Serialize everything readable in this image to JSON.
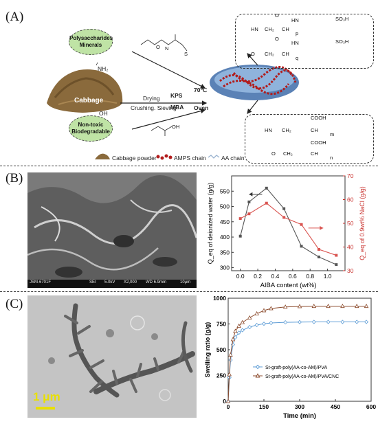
{
  "panels": {
    "a": "(A)",
    "b": "(B)",
    "c": "(C)"
  },
  "panel_a": {
    "bubble_top": "Polysaccharides Minerals",
    "bubble_bottom": "Non-toxic Biodegradable",
    "cabbage": "Cabbage",
    "nh2": "NH₂",
    "oh": "OH",
    "drying": "Drying",
    "crushing": "Crushing. Sieving",
    "kps": "KPS",
    "mba": "MBA",
    "temp": "70℃",
    "oven": "Oven",
    "legend_powder": "Cabbage powder",
    "legend_amps": "AMPS chain",
    "legend_aa": "AA chain",
    "chem_top": {
      "o1": "O",
      "hn1": "HN",
      "so3h1": "SO₃H",
      "hn": "HN",
      "ch2a": "CH₂",
      "cha": "CH",
      "p": "p",
      "o2": "O",
      "hn2": "HN",
      "so3h2": "SO₃H",
      "o": "O",
      "ch2b": "CH₂",
      "chb": "CH",
      "q": "q"
    },
    "chem_bottom": {
      "cooh1": "COOH",
      "hn": "HN",
      "ch2a": "CH₂",
      "cha": "CH",
      "m": "m",
      "cooh2": "COOH",
      "o": "O",
      "ch2b": "CH₂",
      "chb": "CH",
      "n": "n"
    },
    "monomer_o": "O",
    "monomer_oh": "OH",
    "monomer_n": "N",
    "monomer_s": "S"
  },
  "sem_bar": {
    "a": "JSM-6701F",
    "b": "SEI",
    "c": "5.0kV",
    "d": "X2,000",
    "e": "WD 6.9mm",
    "f": "10μm"
  },
  "tem_scale": "1 μm",
  "chart_data": [
    {
      "type": "line",
      "xlabel": "AIBA content (wt%)",
      "ylabel_left": "Q_eq of deionized water (g/g)",
      "ylabel_right": "Q_eq of 0.9wt% NaCl (g/g)",
      "xlim": [
        -0.1,
        1.2
      ],
      "xticks": [
        "0.0",
        "0.2",
        "0.4",
        "0.6",
        "0.8",
        "1.0"
      ],
      "ylim_left": [
        290,
        600
      ],
      "yticks_left": [
        "300",
        "350",
        "400",
        "450",
        "500",
        "550"
      ],
      "ylim_right": [
        30,
        70
      ],
      "yticks_right": [
        "30",
        "40",
        "50",
        "60",
        "70"
      ],
      "series": [
        {
          "axis": "left",
          "color": "#555555",
          "x": [
            0.0,
            0.1,
            0.3,
            0.5,
            0.7,
            0.9,
            1.1
          ],
          "values": [
            403,
            515,
            560,
            493,
            370,
            335,
            310
          ]
        },
        {
          "axis": "right",
          "color": "#d9534f",
          "x": [
            0.0,
            0.1,
            0.3,
            0.5,
            0.7,
            0.9,
            1.1
          ],
          "values": [
            52,
            54,
            58.5,
            52.5,
            49.5,
            39,
            36.5
          ]
        }
      ]
    },
    {
      "type": "line",
      "xlabel": "Time (min)",
      "ylabel": "Swelling ratio (g/g)",
      "xlim": [
        0,
        600
      ],
      "xticks": [
        "0",
        "150",
        "300",
        "450",
        "600"
      ],
      "ylim": [
        0,
        1000
      ],
      "yticks": [
        "0",
        "250",
        "500",
        "750",
        "1000"
      ],
      "series": [
        {
          "name": "St-graft-poly(AA-co-AM)/PVA",
          "color": "#5b9bd5",
          "marker": "diamond",
          "x": [
            0,
            5,
            10,
            20,
            30,
            45,
            60,
            90,
            120,
            150,
            180,
            240,
            300,
            360,
            420,
            480,
            540,
            580
          ],
          "values": [
            0,
            230,
            400,
            550,
            620,
            665,
            690,
            720,
            740,
            752,
            760,
            766,
            768,
            770,
            770,
            770,
            770,
            770
          ]
        },
        {
          "name": "St-graft-poly(AA-co-AM)/PVA/CNC",
          "color": "#8b4a2b",
          "marker": "triangle",
          "x": [
            0,
            5,
            10,
            20,
            30,
            45,
            60,
            90,
            120,
            150,
            180,
            240,
            300,
            360,
            420,
            480,
            540,
            580
          ],
          "values": [
            0,
            260,
            450,
            600,
            680,
            730,
            765,
            810,
            850,
            880,
            900,
            915,
            920,
            922,
            922,
            922,
            922,
            922
          ]
        }
      ]
    }
  ]
}
